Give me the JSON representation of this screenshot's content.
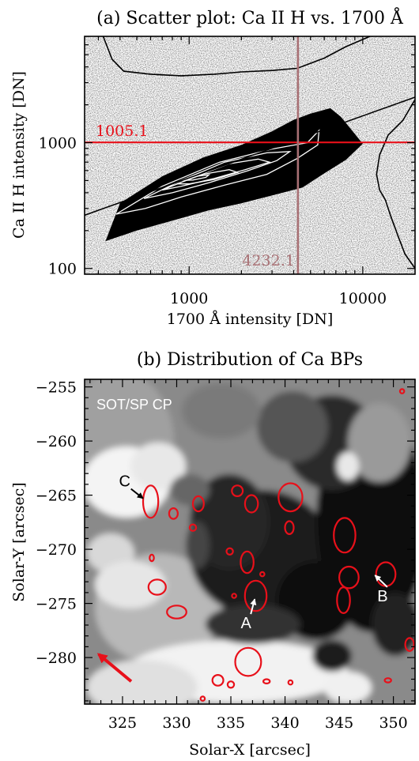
{
  "chart_data": [
    {
      "type": "scatter",
      "title": "(a) Scatter plot: Ca II H vs. 1700 Å",
      "xlabel": "1700 Å intensity [DN]",
      "ylabel": "Ca II H intensity [DN]",
      "xscale": "log",
      "yscale": "log",
      "xlim": [
        250,
        20000
      ],
      "ylim": [
        90,
        7000
      ],
      "xticks": [
        1000,
        10000
      ],
      "xtick_labels": [
        "1000",
        "10000"
      ],
      "yticks": [
        100,
        1000
      ],
      "ytick_labels": [
        "100",
        "1000"
      ],
      "grid": false,
      "horizontal_threshold": {
        "value": 1005.1,
        "label": "1005.1",
        "color": "#e8101a"
      },
      "vertical_threshold": {
        "value": 4232.1,
        "label": "4232.1",
        "color": "#a87074"
      },
      "fit_line": {
        "x": [
          250,
          20000
        ],
        "y": [
          265,
          2300
        ]
      },
      "scatter_envelope": {
        "upper": [
          [
            400,
            330
          ],
          [
            700,
            540
          ],
          [
            1200,
            760
          ],
          [
            2000,
            960
          ],
          [
            3000,
            1230
          ],
          [
            4000,
            1520
          ],
          [
            5000,
            1700
          ],
          [
            6500,
            1880
          ],
          [
            7500,
            1600
          ]
        ],
        "lower": [
          [
            330,
            165
          ],
          [
            500,
            200
          ],
          [
            800,
            240
          ],
          [
            1300,
            290
          ],
          [
            2000,
            330
          ],
          [
            3000,
            380
          ],
          [
            4500,
            440
          ],
          [
            6000,
            570
          ],
          [
            8000,
            730
          ],
          [
            10000,
            980
          ]
        ]
      },
      "contours": [
        [
          [
            380,
            270
          ],
          [
            700,
            450
          ],
          [
            1500,
            700
          ],
          [
            3000,
            890
          ],
          [
            4800,
            1000
          ],
          [
            5600,
            1250
          ],
          [
            5500,
            960
          ],
          [
            4200,
            750
          ],
          [
            2800,
            560
          ],
          [
            1600,
            460
          ],
          [
            900,
            370
          ],
          [
            560,
            300
          ]
        ],
        [
          [
            550,
            360
          ],
          [
            900,
            500
          ],
          [
            1600,
            700
          ],
          [
            2800,
            830
          ],
          [
            3800,
            850
          ],
          [
            3200,
            720
          ],
          [
            2200,
            600
          ],
          [
            1300,
            480
          ],
          [
            800,
            400
          ]
        ],
        [
          [
            700,
            420
          ],
          [
            1100,
            540
          ],
          [
            1700,
            680
          ],
          [
            2500,
            740
          ],
          [
            2900,
            700
          ],
          [
            2100,
            610
          ],
          [
            1400,
            520
          ],
          [
            900,
            450
          ]
        ],
        [
          [
            850,
            470
          ],
          [
            1200,
            560
          ],
          [
            1700,
            610
          ],
          [
            1900,
            580
          ],
          [
            1400,
            510
          ],
          [
            1000,
            470
          ]
        ],
        [
          [
            900,
            500
          ],
          [
            1100,
            540
          ],
          [
            1300,
            555
          ],
          [
            1250,
            530
          ],
          [
            1050,
            505
          ]
        ]
      ],
      "top_histogram": [
        [
          320,
          7000
        ],
        [
          360,
          4600
        ],
        [
          420,
          3700
        ],
        [
          600,
          3500
        ],
        [
          900,
          3400
        ],
        [
          1400,
          3500
        ],
        [
          2000,
          3650
        ],
        [
          3000,
          3750
        ],
        [
          4200,
          3900
        ],
        [
          6000,
          4700
        ],
        [
          8000,
          5800
        ],
        [
          11000,
          7000
        ]
      ],
      "right_histogram": [
        [
          20000,
          2200
        ],
        [
          17000,
          1500
        ],
        [
          14000,
          1150
        ],
        [
          12500,
          800
        ],
        [
          12000,
          560
        ],
        [
          12500,
          420
        ],
        [
          13500,
          350
        ],
        [
          14500,
          260
        ],
        [
          16000,
          180
        ],
        [
          17500,
          130
        ],
        [
          20000,
          100
        ]
      ]
    },
    {
      "type": "heatmap",
      "title": "(b) Distribution of Ca BPs",
      "xlabel": "Solar-X [arcsec]",
      "ylabel": "Solar-Y [arcsec]",
      "xlim": [
        321.5,
        352
      ],
      "ylim": [
        -284.3,
        -254.3
      ],
      "xticks": [
        325,
        330,
        335,
        340,
        345,
        350
      ],
      "xtick_labels": [
        "325",
        "330",
        "335",
        "340",
        "345",
        "350"
      ],
      "yticks": [
        -255,
        -260,
        -265,
        -270,
        -275,
        -280
      ],
      "ytick_labels": [
        "−255",
        "−260",
        "−265",
        "−270",
        "−275",
        "−280"
      ],
      "map_label": "SOT/SP CP",
      "annotations": [
        {
          "text": "A",
          "x": 336.4,
          "y": -277.3,
          "tip": [
            337.2,
            -274.6
          ]
        },
        {
          "text": "B",
          "x": 349.0,
          "y": -274.8,
          "tip": [
            348.3,
            -272.4
          ]
        },
        {
          "text": "C",
          "x": 325.2,
          "y": -264.2,
          "tip": [
            326.9,
            -265.3
          ]
        }
      ],
      "direction_arrow": {
        "from": [
          325.8,
          -282.2
        ],
        "to": [
          322.8,
          -279.7
        ],
        "color": "#e8101a"
      },
      "bright_points": [
        {
          "x": 327.6,
          "y": -265.6,
          "rx": 0.7,
          "ry": 1.5
        },
        {
          "x": 332.0,
          "y": -265.8,
          "rx": 0.5,
          "ry": 0.7
        },
        {
          "x": 329.7,
          "y": -266.7,
          "rx": 0.4,
          "ry": 0.5
        },
        {
          "x": 331.5,
          "y": -268.0,
          "rx": 0.3,
          "ry": 0.3
        },
        {
          "x": 335.6,
          "y": -264.6,
          "rx": 0.5,
          "ry": 0.5
        },
        {
          "x": 340.5,
          "y": -265.2,
          "rx": 1.1,
          "ry": 1.3
        },
        {
          "x": 340.4,
          "y": -268.0,
          "rx": 0.4,
          "ry": 0.6
        },
        {
          "x": 336.9,
          "y": -265.8,
          "rx": 0.6,
          "ry": 0.8
        },
        {
          "x": 336.5,
          "y": -271.2,
          "rx": 0.6,
          "ry": 1.0
        },
        {
          "x": 334.9,
          "y": -270.2,
          "rx": 0.3,
          "ry": 0.3
        },
        {
          "x": 337.3,
          "y": -274.3,
          "rx": 1.0,
          "ry": 1.4
        },
        {
          "x": 337.9,
          "y": -272.3,
          "rx": 0.2,
          "ry": 0.2
        },
        {
          "x": 335.3,
          "y": -274.3,
          "rx": 0.2,
          "ry": 0.2
        },
        {
          "x": 328.2,
          "y": -273.5,
          "rx": 0.8,
          "ry": 0.7
        },
        {
          "x": 330.0,
          "y": -275.8,
          "rx": 0.9,
          "ry": 0.6
        },
        {
          "x": 327.7,
          "y": -270.8,
          "rx": 0.2,
          "ry": 0.3
        },
        {
          "x": 345.5,
          "y": -268.7,
          "rx": 1.0,
          "ry": 1.6
        },
        {
          "x": 345.9,
          "y": -272.6,
          "rx": 0.9,
          "ry": 1.0
        },
        {
          "x": 345.4,
          "y": -274.7,
          "rx": 0.6,
          "ry": 1.2
        },
        {
          "x": 349.3,
          "y": -272.3,
          "rx": 0.9,
          "ry": 1.1
        },
        {
          "x": 351.5,
          "y": -278.8,
          "rx": 0.4,
          "ry": 0.6
        },
        {
          "x": 336.6,
          "y": -280.4,
          "rx": 1.2,
          "ry": 1.3
        },
        {
          "x": 333.8,
          "y": -282.1,
          "rx": 0.5,
          "ry": 0.5
        },
        {
          "x": 335.0,
          "y": -282.5,
          "rx": 0.3,
          "ry": 0.3
        },
        {
          "x": 338.3,
          "y": -282.2,
          "rx": 0.3,
          "ry": 0.2
        },
        {
          "x": 340.5,
          "y": -282.3,
          "rx": 0.2,
          "ry": 0.2
        },
        {
          "x": 349.5,
          "y": -282.1,
          "rx": 0.3,
          "ry": 0.2
        },
        {
          "x": 332.4,
          "y": -283.8,
          "rx": 0.2,
          "ry": 0.2
        },
        {
          "x": 350.8,
          "y": -255.4,
          "rx": 0.2,
          "ry": 0.2
        }
      ]
    }
  ]
}
